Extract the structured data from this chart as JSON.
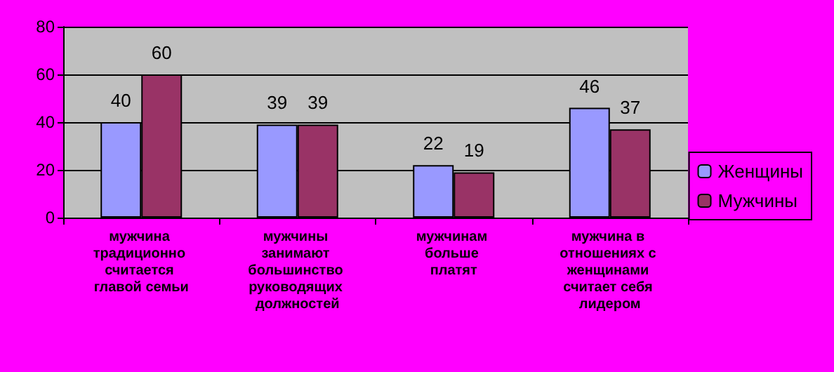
{
  "chart_data": {
    "type": "bar",
    "categories": [
      "мужчина традиционно считается главой семьи",
      "мужчины занимают большинство руководящих должностей",
      "мужчинам больше платят",
      "мужчина в отношениях с женщинами считает себя лидером"
    ],
    "series": [
      {
        "name": "Женщины",
        "color": "#9999ff",
        "values": [
          40,
          39,
          22,
          46
        ]
      },
      {
        "name": "Мужчины",
        "color": "#993366",
        "values": [
          60,
          39,
          19,
          37
        ]
      }
    ],
    "ylim": [
      0,
      80
    ],
    "yticks": [
      0,
      20,
      40,
      60,
      80
    ],
    "grid": "y",
    "legend": "right",
    "data_labels": true
  }
}
